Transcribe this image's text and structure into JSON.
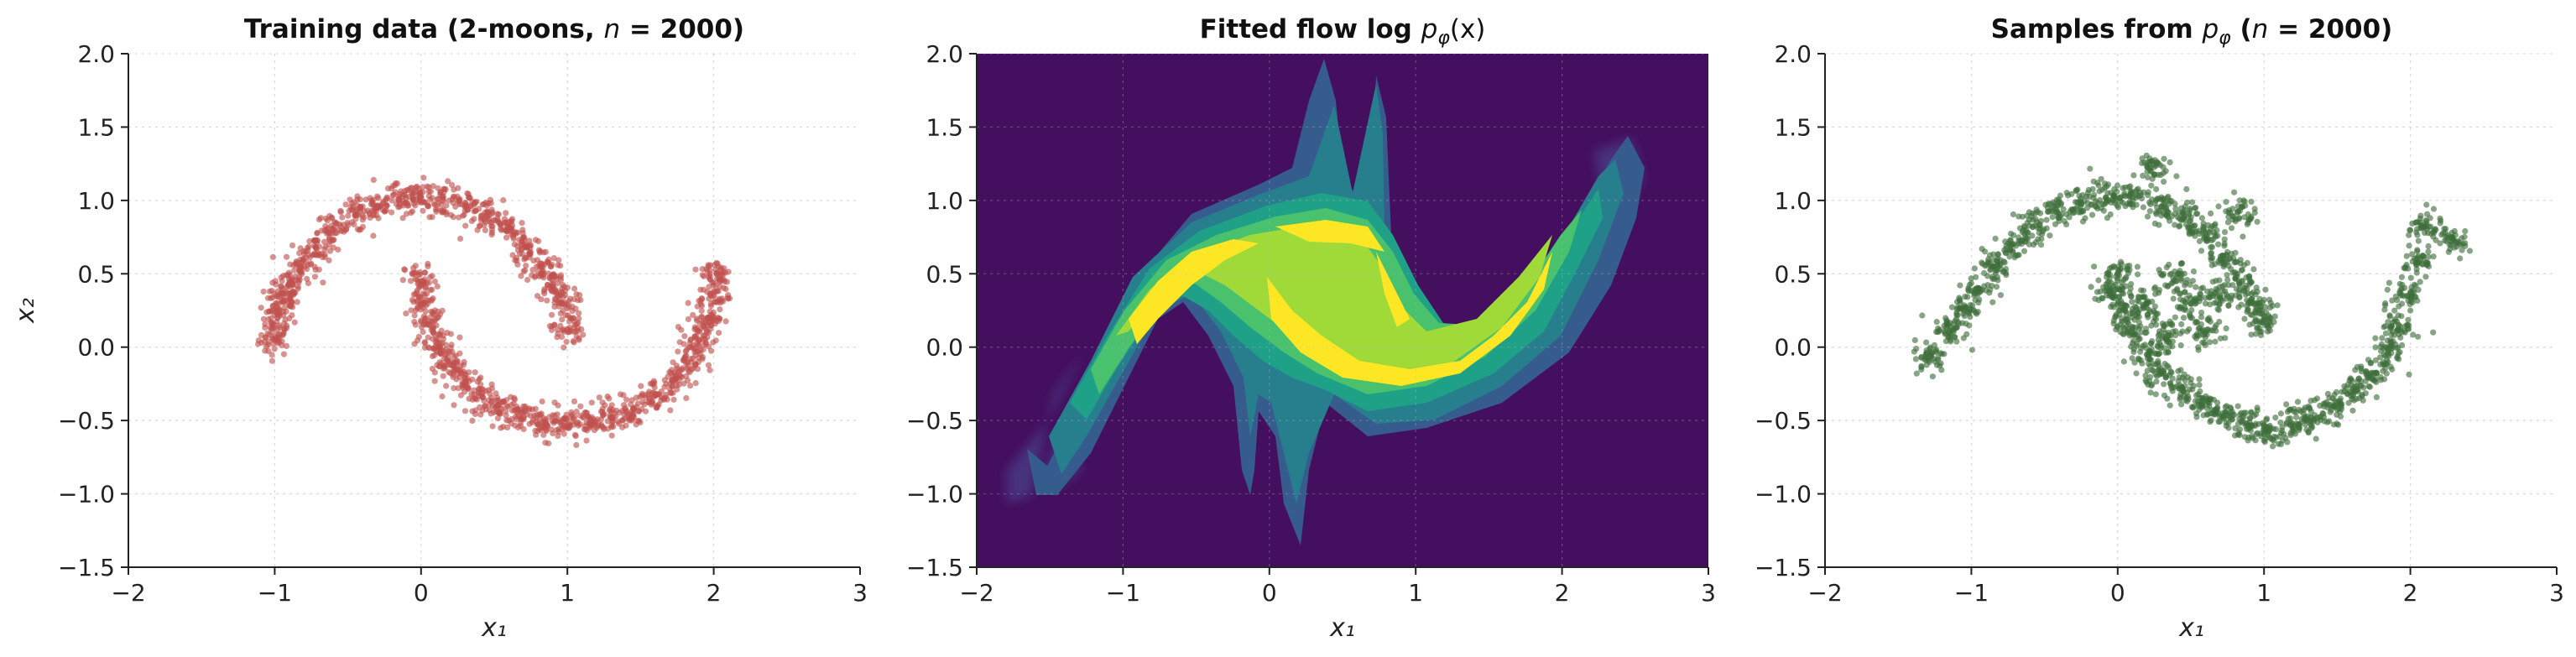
{
  "chart_data": [
    {
      "type": "scatter",
      "title": "Training data (2-moons, n = 2000)",
      "title_parts": [
        "Training data (2-moons, ",
        "n",
        " = 2000)"
      ],
      "xlabel": "x₁",
      "ylabel": "x₂",
      "xlim": [
        -2,
        3
      ],
      "ylim": [
        -1.5,
        2.0
      ],
      "xticks": [
        -2,
        -1,
        0,
        1,
        2,
        3
      ],
      "yticks": [
        -1.5,
        -1.0,
        -0.5,
        0.0,
        0.5,
        1.0,
        1.5,
        2.0
      ],
      "xtick_labels": [
        "−2",
        "−1",
        "0",
        "1",
        "2",
        "3"
      ],
      "ytick_labels": [
        "−1.5",
        "−1.0",
        "−0.5",
        "0.0",
        "0.5",
        "1.0",
        "1.5",
        "2.0"
      ],
      "grid": true,
      "color": "#c0504d",
      "series": [
        {
          "points": [
            [
              -1.0,
              0.05
            ],
            [
              -0.98,
              0.2
            ],
            [
              -0.95,
              0.32
            ],
            [
              -0.9,
              0.43
            ],
            [
              -0.82,
              0.55
            ],
            [
              -0.72,
              0.68
            ],
            [
              -0.6,
              0.8
            ],
            [
              -0.45,
              0.9
            ],
            [
              -0.3,
              0.96
            ],
            [
              -0.15,
              1.0
            ],
            [
              0.0,
              1.02
            ],
            [
              0.15,
              1.0
            ],
            [
              0.3,
              0.96
            ],
            [
              0.45,
              0.89
            ],
            [
              0.6,
              0.8
            ],
            [
              0.72,
              0.68
            ],
            [
              0.82,
              0.55
            ],
            [
              0.9,
              0.43
            ],
            [
              0.96,
              0.3
            ],
            [
              1.0,
              0.12
            ],
            [
              0.0,
              0.45
            ],
            [
              0.02,
              0.3
            ],
            [
              0.06,
              0.15
            ],
            [
              0.12,
              0.0
            ],
            [
              0.2,
              -0.12
            ],
            [
              0.3,
              -0.24
            ],
            [
              0.42,
              -0.34
            ],
            [
              0.55,
              -0.42
            ],
            [
              0.7,
              -0.48
            ],
            [
              0.85,
              -0.52
            ],
            [
              1.0,
              -0.53
            ],
            [
              1.15,
              -0.52
            ],
            [
              1.3,
              -0.48
            ],
            [
              1.45,
              -0.42
            ],
            [
              1.6,
              -0.33
            ],
            [
              1.72,
              -0.23
            ],
            [
              1.82,
              -0.1
            ],
            [
              1.9,
              0.05
            ],
            [
              1.96,
              0.2
            ],
            [
              2.0,
              0.35
            ],
            [
              2.02,
              0.5
            ]
          ]
        }
      ]
    },
    {
      "type": "heatmap",
      "title": "Fitted flow  log p_φ(x)",
      "title_parts": [
        "Fitted flow  log ",
        "p",
        "φ",
        "(x)"
      ],
      "xlabel": "x₁",
      "xlim": [
        -2,
        3
      ],
      "ylim": [
        -1.5,
        2.0
      ],
      "xticks": [
        -2,
        -1,
        0,
        1,
        2,
        3
      ],
      "yticks": [
        -1.5,
        -1.0,
        -0.5,
        0.0,
        0.5,
        1.0,
        1.5,
        2.0
      ],
      "xtick_labels": [
        "−2",
        "−1",
        "0",
        "1",
        "2",
        "3"
      ],
      "ytick_labels": [
        "−1.5",
        "−1.0",
        "−0.5",
        "0.0",
        "0.5",
        "1.0",
        "1.5",
        "2.0"
      ],
      "grid": true,
      "colormap": "viridis",
      "background_color": "#440f5e",
      "level_colors": [
        "#46327e",
        "#365c8d",
        "#277f8e",
        "#1fa187",
        "#4ac16d",
        "#a0da39",
        "#fde725"
      ]
    },
    {
      "type": "scatter",
      "title": "Samples from p_φ  (n = 2000)",
      "title_parts": [
        "Samples from ",
        "p",
        "φ",
        "  (",
        "n",
        " = 2000)"
      ],
      "xlabel": "x₁",
      "xlim": [
        -2,
        3
      ],
      "ylim": [
        -1.5,
        2.0
      ],
      "xticks": [
        -2,
        -1,
        0,
        1,
        2,
        3
      ],
      "yticks": [
        -1.5,
        -1.0,
        -0.5,
        0.0,
        0.5,
        1.0,
        1.5,
        2.0
      ],
      "xtick_labels": [
        "−2",
        "−1",
        "0",
        "1",
        "2",
        "3"
      ],
      "ytick_labels": [
        "−1.5",
        "−1.0",
        "−0.5",
        "0.0",
        "0.5",
        "1.0",
        "1.5",
        "2.0"
      ],
      "grid": true,
      "color": "#3e6e3a",
      "series": [
        {
          "points": [
            [
              -1.28,
              -0.06
            ],
            [
              -1.15,
              0.1
            ],
            [
              -1.05,
              0.25
            ],
            [
              -0.95,
              0.4
            ],
            [
              -0.85,
              0.55
            ],
            [
              -0.72,
              0.7
            ],
            [
              -0.58,
              0.82
            ],
            [
              -0.42,
              0.92
            ],
            [
              -0.25,
              0.98
            ],
            [
              -0.08,
              1.02
            ],
            [
              0.08,
              1.03
            ],
            [
              0.22,
              1.22
            ],
            [
              0.3,
              0.96
            ],
            [
              0.45,
              0.88
            ],
            [
              0.6,
              0.78
            ],
            [
              0.72,
              0.62
            ],
            [
              0.85,
              0.45
            ],
            [
              0.95,
              0.3
            ],
            [
              1.0,
              0.18
            ],
            [
              0.82,
              0.92
            ],
            [
              0.0,
              0.5
            ],
            [
              -0.05,
              0.38
            ],
            [
              0.05,
              0.25
            ],
            [
              0.1,
              0.1
            ],
            [
              0.2,
              -0.05
            ],
            [
              0.3,
              -0.18
            ],
            [
              0.45,
              -0.3
            ],
            [
              0.58,
              -0.4
            ],
            [
              0.72,
              -0.47
            ],
            [
              0.88,
              -0.52
            ],
            [
              1.02,
              -0.55
            ],
            [
              1.18,
              -0.53
            ],
            [
              1.32,
              -0.48
            ],
            [
              1.48,
              -0.4
            ],
            [
              1.62,
              -0.3
            ],
            [
              1.75,
              -0.18
            ],
            [
              1.85,
              -0.02
            ],
            [
              1.92,
              0.15
            ],
            [
              1.98,
              0.35
            ],
            [
              2.05,
              0.58
            ],
            [
              2.1,
              0.82
            ],
            [
              2.28,
              0.72
            ],
            [
              0.5,
              0.3
            ],
            [
              0.6,
              0.1
            ],
            [
              0.4,
              0.45
            ],
            [
              0.2,
              0.3
            ],
            [
              0.7,
              0.35
            ],
            [
              0.35,
              0.08
            ]
          ]
        }
      ]
    }
  ]
}
